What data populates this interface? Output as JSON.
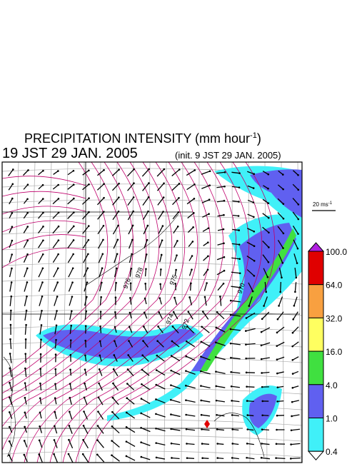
{
  "header": {
    "title": "PRECIPITATION INTENSITY (mm hour",
    "title_sup": "-1",
    "title_end": ")",
    "valid_time": "19 JST 29 JAN. 2005",
    "init_time": "(init. 9 JST 29 JAN. 2005)"
  },
  "wind_reference": {
    "label": "20 ms",
    "label_sup": "-1"
  },
  "legend": {
    "levels": [
      "100.0",
      "64.0",
      "32.0",
      "16.0",
      "4.0",
      "1.0",
      "0.4"
    ],
    "colors": [
      "#b020e0",
      "#e00000",
      "#f8a040",
      "#ffff60",
      "#40e040",
      "#6060f0",
      "#40f0f8",
      "#ffffff"
    ]
  },
  "contour_labels": [
    "978",
    "976",
    "975",
    "974",
    "972",
    "970"
  ]
}
